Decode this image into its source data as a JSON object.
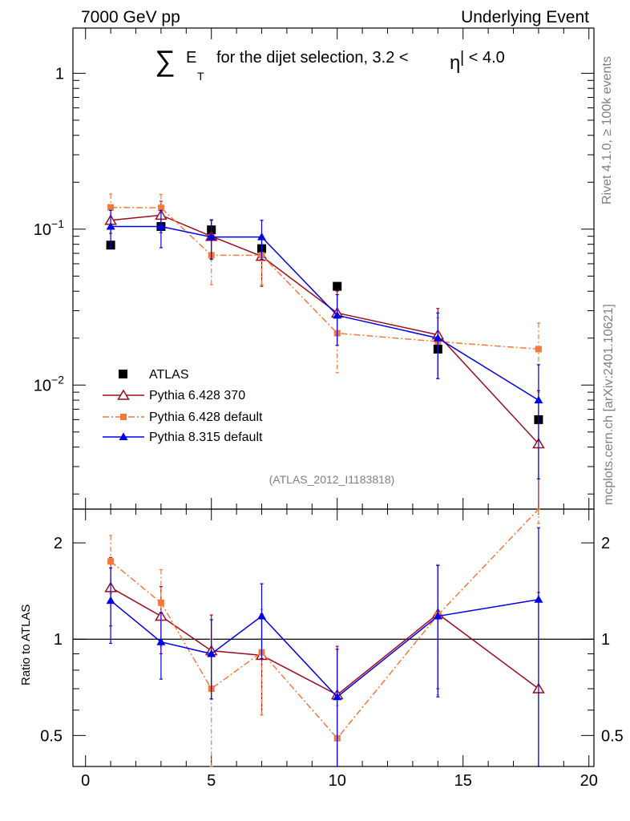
{
  "header": {
    "left": "7000 GeV pp",
    "right": "Underlying Event"
  },
  "title": {
    "sigma": "∑",
    "e": "E",
    "t": "T",
    "text": "for the dijet selection, 3.2 <",
    "eta": "η",
    "tail": "| < 4.0"
  },
  "side_labels": {
    "rivet": "Rivet 4.1.0, ≥ 100k events",
    "mcplots": "mcplots.cern.ch [arXiv:2401.10621]"
  },
  "watermark": "(ATLAS_2012_I1183818)",
  "ratio_ylabel": "Ratio to ATLAS",
  "colors": {
    "atlas": "#000000",
    "p6_370": "#9b0d1e",
    "p6_default": "#f5793a",
    "p8": "#0000e6"
  },
  "chart_data": {
    "type": "line",
    "x": [
      1,
      3,
      5,
      7,
      10,
      14,
      18
    ],
    "xlim": [
      -0.5,
      20.2
    ],
    "xticks": [
      0,
      5,
      10,
      15,
      20
    ],
    "xtick_labels": [
      "0",
      "5",
      "10",
      "15",
      "20"
    ],
    "main": {
      "yscale": "log",
      "ylim": [
        0.0016,
        1.95
      ],
      "yticks": [
        0.01,
        0.1,
        1
      ],
      "ytick_labels": [
        "10^-2",
        "10^-1",
        "1"
      ],
      "series": [
        {
          "name": "ATLAS",
          "style": "data",
          "values": [
            0.079,
            0.104,
            0.099,
            0.075,
            0.043,
            0.017,
            0.006
          ]
        },
        {
          "name": "Pythia 6.428 370",
          "style": "open-triangle",
          "values": [
            0.114,
            0.123,
            0.09,
            0.067,
            0.029,
            0.021,
            0.0042
          ],
          "err_lo": [
            0.02,
            0.028,
            0.025,
            0.024,
            0.011,
            0.01,
            0.0042
          ],
          "err_hi": [
            0.02,
            0.028,
            0.025,
            0.024,
            0.011,
            0.01,
            0.005
          ]
        },
        {
          "name": "Pythia 6.428 default",
          "style": "square-dashdot",
          "values": [
            0.138,
            0.137,
            0.068,
            0.068,
            0.0215,
            0.019,
            0.017
          ],
          "err_lo": [
            0.03,
            0.03,
            0.024,
            0.024,
            0.0095,
            0.008,
            0.008
          ],
          "err_hi": [
            0.03,
            0.03,
            0.024,
            0.024,
            0.0095,
            0.008,
            0.008
          ]
        },
        {
          "name": "Pythia 8.315 default",
          "style": "filled-triangle",
          "values": [
            0.104,
            0.104,
            0.089,
            0.089,
            0.028,
            0.02,
            0.008
          ],
          "err_lo": [
            0.028,
            0.028,
            0.025,
            0.025,
            0.01,
            0.009,
            0.0055
          ],
          "err_hi": [
            0.028,
            0.028,
            0.025,
            0.025,
            0.01,
            0.009,
            0.0055
          ]
        }
      ]
    },
    "ratio": {
      "yscale": "log",
      "ylim": [
        0.4,
        2.55
      ],
      "yticks": [
        0.5,
        1,
        2
      ],
      "ytick_labels": [
        "0.5",
        "1",
        "2"
      ],
      "reference": 1,
      "series": [
        {
          "name": "Pythia 6.428 370",
          "values": [
            1.45,
            1.18,
            0.92,
            0.89,
            0.67,
            1.2,
            0.7
          ],
          "err_lo": [
            0.35,
            0.28,
            0.27,
            0.31,
            0.28,
            0.5,
            0.7
          ],
          "err_hi": [
            0.35,
            0.28,
            0.27,
            0.31,
            0.28,
            0.5,
            0.7
          ]
        },
        {
          "name": "Pythia 6.428 default",
          "values": [
            1.75,
            1.3,
            0.7,
            0.91,
            0.49,
            1.19,
            2.8
          ],
          "err_lo": [
            0.36,
            0.35,
            0.3,
            0.33,
            0.13,
            0.52,
            0.5
          ],
          "err_hi": [
            0.36,
            0.35,
            0.3,
            0.33,
            0.13,
            0.52,
            0.5
          ]
        },
        {
          "name": "Pythia 8.315 default",
          "values": [
            1.32,
            0.98,
            0.9,
            1.18,
            0.66,
            1.18,
            1.33
          ],
          "err_lo": [
            0.35,
            0.23,
            0.25,
            0.31,
            0.27,
            0.52,
            1.0
          ],
          "err_hi": [
            0.35,
            0.23,
            0.25,
            0.31,
            0.27,
            0.52,
            0.9
          ]
        }
      ]
    },
    "legend": {
      "position": "bottom-left",
      "entries": [
        "ATLAS",
        "Pythia 6.428 370",
        "Pythia 6.428 default",
        "Pythia 8.315 default"
      ]
    }
  }
}
